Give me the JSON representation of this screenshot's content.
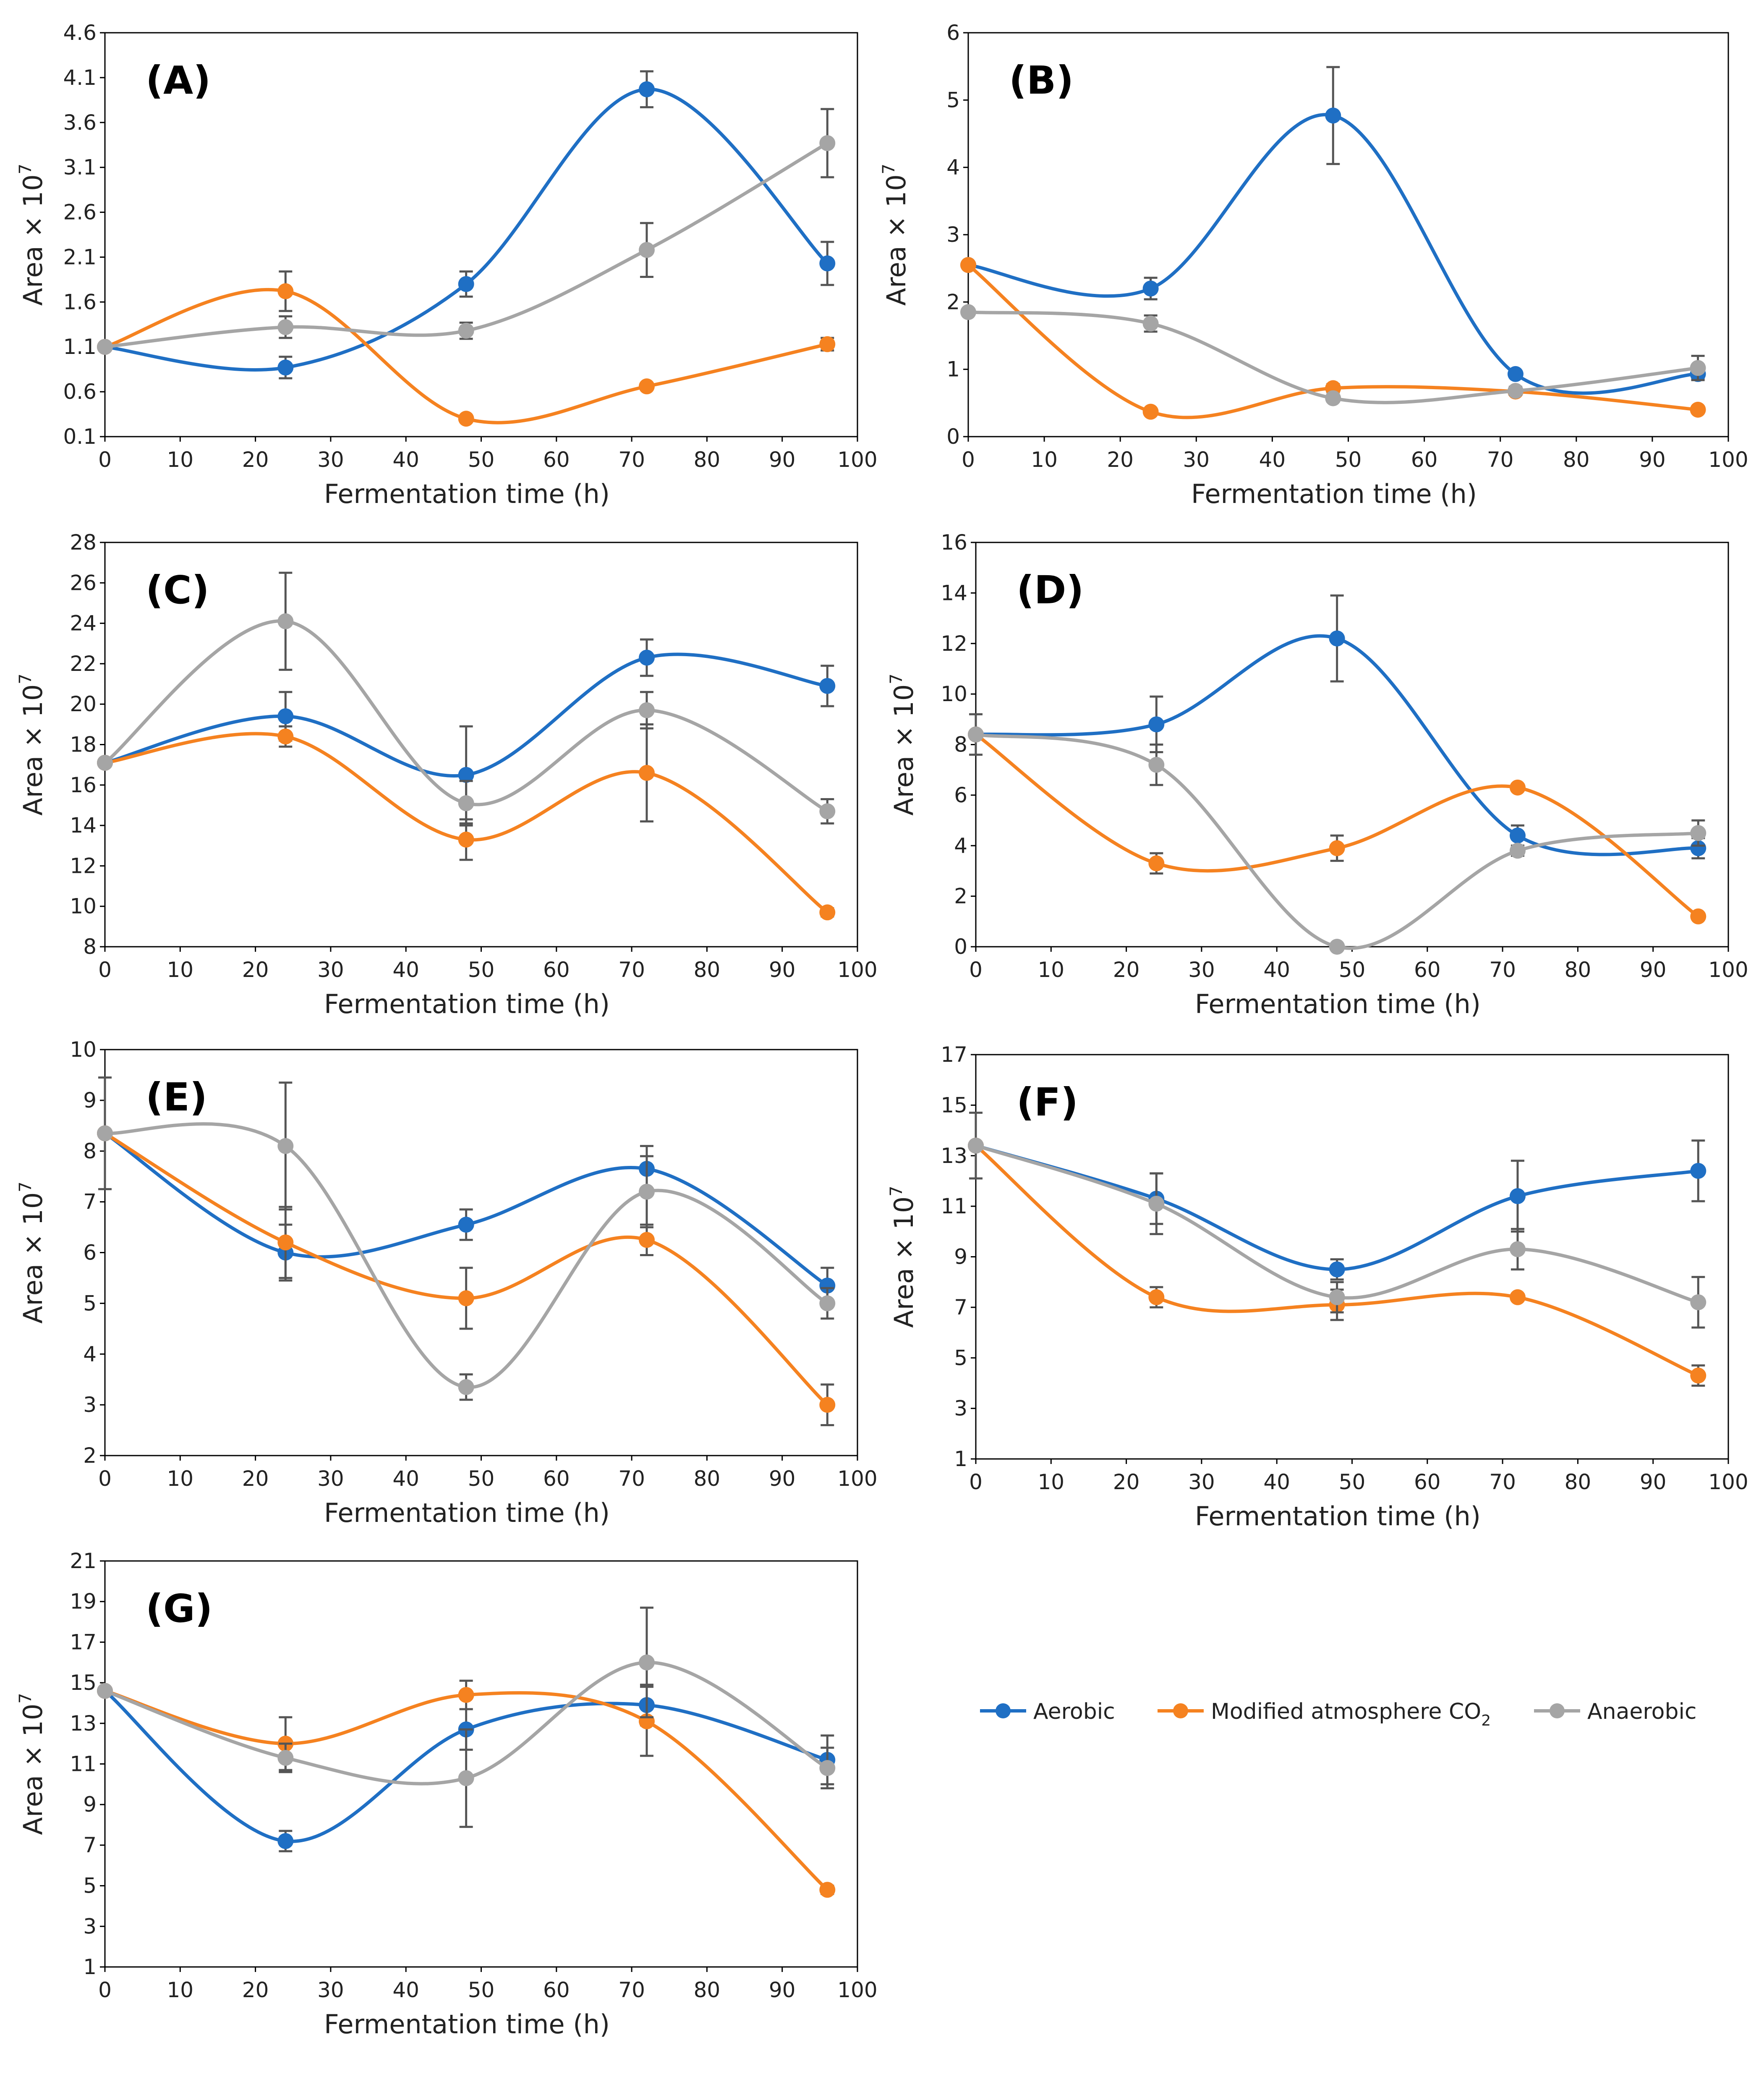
{
  "legend": {
    "aerobic": "Aerobic",
    "modified_prefix": "Modified atmosphere CO",
    "modified_sub": "2",
    "anaerobic": "Anaerobic"
  },
  "colors": {
    "Aerobic": "#1f6fc4",
    "Modified atmosphere CO2": "#f58220",
    "Anaerobic": "#a5a5a5",
    "errorbar": "#555555",
    "axis": "#000000"
  },
  "chart_data": [
    {
      "type": "line",
      "label": "(A)",
      "xlabel": "Fermentation time (h)",
      "ylabel": "Area × 10",
      "ylabel_sup": "7",
      "xlim": [
        0,
        100
      ],
      "xticks": [
        0,
        10,
        20,
        30,
        40,
        50,
        60,
        70,
        80,
        90,
        100
      ],
      "ylim": [
        0.1,
        4.6
      ],
      "yticks": [
        "0.1",
        "0.6",
        "1.1",
        "1.6",
        "2.1",
        "2.6",
        "3.1",
        "3.6",
        "4.1",
        "4.6"
      ],
      "x": [
        0,
        24,
        48,
        72,
        96
      ],
      "series": [
        {
          "name": "Aerobic",
          "values": [
            1.1,
            0.87,
            1.8,
            3.97,
            2.03
          ],
          "errors": [
            0,
            0.12,
            0.14,
            0.2,
            0.24
          ]
        },
        {
          "name": "Modified atmosphere CO2",
          "values": [
            1.1,
            1.72,
            0.3,
            0.66,
            1.13
          ],
          "errors": [
            0,
            0.22,
            0.03,
            0.03,
            0.07
          ]
        },
        {
          "name": "Anaerobic",
          "values": [
            1.1,
            1.32,
            1.28,
            2.18,
            3.37
          ],
          "errors": [
            0,
            0.12,
            0.09,
            0.3,
            0.38
          ]
        }
      ]
    },
    {
      "type": "line",
      "label": "(B)",
      "xlabel": "Fermentation time (h)",
      "ylabel": "Area × 10",
      "ylabel_sup": "7",
      "xlim": [
        0,
        100
      ],
      "xticks": [
        0,
        10,
        20,
        30,
        40,
        50,
        60,
        70,
        80,
        90,
        100
      ],
      "ylim": [
        0,
        6
      ],
      "yticks": [
        "0",
        "1",
        "2",
        "3",
        "4",
        "5",
        "6"
      ],
      "x": [
        0,
        24,
        48,
        72,
        96
      ],
      "series": [
        {
          "name": "Aerobic",
          "values": [
            2.55,
            2.2,
            4.77,
            0.93,
            0.93
          ],
          "errors": [
            0,
            0.16,
            0.72,
            0.04,
            0.08
          ]
        },
        {
          "name": "Modified atmosphere CO2",
          "values": [
            2.55,
            0.37,
            0.72,
            0.67,
            0.4
          ],
          "errors": [
            0,
            0.04,
            0.06,
            0.05,
            0.04
          ]
        },
        {
          "name": "Anaerobic",
          "values": [
            1.85,
            1.68,
            0.57,
            0.68,
            1.02
          ],
          "errors": [
            0,
            0.12,
            0.05,
            0.06,
            0.18
          ]
        }
      ]
    },
    {
      "type": "line",
      "label": "(C)",
      "xlabel": "Fermentation time (h)",
      "ylabel": "Area × 10",
      "ylabel_sup": "7",
      "xlim": [
        0,
        100
      ],
      "xticks": [
        0,
        10,
        20,
        30,
        40,
        50,
        60,
        70,
        80,
        90,
        100
      ],
      "ylim": [
        8,
        28
      ],
      "yticks": [
        "8",
        "10",
        "12",
        "14",
        "16",
        "18",
        "20",
        "22",
        "24",
        "26",
        "28"
      ],
      "x": [
        0,
        24,
        48,
        72,
        96
      ],
      "series": [
        {
          "name": "Aerobic",
          "values": [
            17.1,
            19.4,
            16.5,
            22.3,
            20.9
          ],
          "errors": [
            0,
            1.2,
            2.4,
            0.9,
            1.0
          ]
        },
        {
          "name": "Modified atmosphere CO2",
          "values": [
            17.1,
            18.4,
            13.3,
            16.6,
            9.7
          ],
          "errors": [
            0,
            0.5,
            1.0,
            2.4,
            0.2
          ]
        },
        {
          "name": "Anaerobic",
          "values": [
            17.1,
            24.1,
            15.1,
            19.7,
            14.7
          ],
          "errors": [
            0,
            2.4,
            1.1,
            0.9,
            0.6
          ]
        }
      ]
    },
    {
      "type": "line",
      "label": "(D)",
      "xlabel": "Fermentation time (h)",
      "ylabel": "Area × 10",
      "ylabel_sup": "7",
      "xlim": [
        0,
        100
      ],
      "xticks": [
        0,
        10,
        20,
        30,
        40,
        50,
        60,
        70,
        80,
        90,
        100
      ],
      "ylim": [
        0,
        16
      ],
      "yticks": [
        "0",
        "2",
        "4",
        "6",
        "8",
        "10",
        "12",
        "14",
        "16"
      ],
      "x": [
        0,
        24,
        48,
        72,
        96
      ],
      "series": [
        {
          "name": "Aerobic",
          "values": [
            8.4,
            8.8,
            12.2,
            4.4,
            3.9
          ],
          "errors": [
            0.8,
            1.1,
            1.7,
            0.4,
            0.4
          ]
        },
        {
          "name": "Modified atmosphere CO2",
          "values": [
            8.4,
            3.3,
            3.9,
            6.3,
            1.2
          ],
          "errors": [
            0,
            0.4,
            0.5,
            0.1,
            0.1
          ]
        },
        {
          "name": "Anaerobic",
          "values": [
            8.4,
            7.2,
            0.0,
            3.8,
            4.5
          ],
          "errors": [
            0,
            0.8,
            0.1,
            0.2,
            0.5
          ]
        }
      ]
    },
    {
      "type": "line",
      "label": "(E)",
      "xlabel": "Fermentation time (h)",
      "ylabel": "Area × 10",
      "ylabel_sup": "7",
      "xlim": [
        0,
        100
      ],
      "xticks": [
        0,
        10,
        20,
        30,
        40,
        50,
        60,
        70,
        80,
        90,
        100
      ],
      "ylim": [
        2,
        10
      ],
      "yticks": [
        "2",
        "3",
        "4",
        "5",
        "6",
        "7",
        "8",
        "9",
        "10"
      ],
      "x": [
        0,
        24,
        48,
        72,
        96
      ],
      "series": [
        {
          "name": "Aerobic",
          "values": [
            8.35,
            6.0,
            6.55,
            7.65,
            5.35
          ],
          "errors": [
            1.1,
            0.55,
            0.3,
            0.45,
            0.35
          ]
        },
        {
          "name": "Modified atmosphere CO2",
          "values": [
            8.35,
            6.2,
            5.1,
            6.25,
            3.0
          ],
          "errors": [
            0,
            0.7,
            0.6,
            0.3,
            0.4
          ]
        },
        {
          "name": "Anaerobic",
          "values": [
            8.35,
            8.1,
            3.35,
            7.2,
            5.0
          ],
          "errors": [
            0,
            1.25,
            0.25,
            0.7,
            0.3
          ]
        }
      ]
    },
    {
      "type": "line",
      "label": "(F)",
      "xlabel": "Fermentation time (h)",
      "ylabel": "Area × 10",
      "ylabel_sup": "7",
      "xlim": [
        0,
        100
      ],
      "xticks": [
        0,
        10,
        20,
        30,
        40,
        50,
        60,
        70,
        80,
        90,
        100
      ],
      "ylim": [
        1,
        17
      ],
      "yticks": [
        "1",
        "3",
        "5",
        "7",
        "9",
        "11",
        "13",
        "15",
        "17"
      ],
      "x": [
        0,
        24,
        48,
        72,
        96
      ],
      "series": [
        {
          "name": "Aerobic",
          "values": [
            13.4,
            11.3,
            8.5,
            11.4,
            12.4
          ],
          "errors": [
            1.3,
            1.0,
            0.4,
            1.4,
            1.2
          ]
        },
        {
          "name": "Modified atmosphere CO2",
          "values": [
            13.4,
            7.4,
            7.1,
            7.4,
            4.3
          ],
          "errors": [
            0,
            0.4,
            0.6,
            0.1,
            0.4
          ]
        },
        {
          "name": "Anaerobic",
          "values": [
            13.4,
            11.1,
            7.4,
            9.3,
            7.2
          ],
          "errors": [
            0,
            1.2,
            0.6,
            0.8,
            1.0
          ]
        }
      ]
    },
    {
      "type": "line",
      "label": "(G)",
      "xlabel": "Fermentation time (h)",
      "ylabel": "Area × 10",
      "ylabel_sup": "7",
      "xlim": [
        0,
        100
      ],
      "xticks": [
        0,
        10,
        20,
        30,
        40,
        50,
        60,
        70,
        80,
        90,
        100
      ],
      "ylim": [
        1,
        21
      ],
      "yticks": [
        "1",
        "3",
        "5",
        "7",
        "9",
        "11",
        "13",
        "15",
        "17",
        "19",
        "21"
      ],
      "x": [
        0,
        24,
        48,
        72,
        96
      ],
      "series": [
        {
          "name": "Aerobic",
          "values": [
            14.6,
            7.2,
            12.7,
            13.9,
            11.2
          ],
          "errors": [
            0,
            0.5,
            1.0,
            1.0,
            1.2
          ]
        },
        {
          "name": "Modified atmosphere CO2",
          "values": [
            14.6,
            12.0,
            14.4,
            13.1,
            4.8
          ],
          "errors": [
            0,
            1.3,
            0.7,
            1.7,
            0.2
          ]
        },
        {
          "name": "Anaerobic",
          "values": [
            14.6,
            11.3,
            10.3,
            16.0,
            10.8
          ],
          "errors": [
            0,
            0.7,
            2.4,
            2.7,
            1.0
          ]
        }
      ]
    }
  ]
}
